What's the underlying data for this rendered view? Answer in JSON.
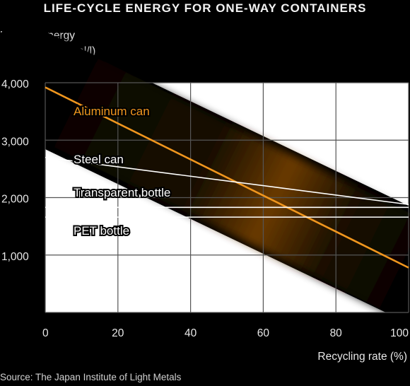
{
  "chart_data": {
    "type": "line",
    "title": "LIFE-CYCLE ENERGY FOR ONE-WAY CONTAINERS",
    "ylabel": "Lifetime energy\nrequirement (Kcal/l)",
    "xlabel": "Recycling rate (%)",
    "source": "Source: The Japan Institute of Light Metals",
    "x_ticks": [
      "0",
      "20",
      "40",
      "60",
      "80",
      "100"
    ],
    "y_ticks": [
      "1,000",
      "2,000",
      "3,000",
      "4,000"
    ],
    "xlim": [
      0,
      100
    ],
    "ylim": [
      0,
      4000
    ],
    "grid": true,
    "series": [
      {
        "name": "Aluminum can",
        "x": [
          0,
          100
        ],
        "y": [
          3920,
          780
        ],
        "color": "#f0961e"
      },
      {
        "name": "Steel can",
        "x": [
          0,
          100
        ],
        "y": [
          2700,
          1880
        ],
        "color": "#ffffff"
      },
      {
        "name": "Transparent bottle",
        "x": [
          0,
          100
        ],
        "y": [
          1830,
          1830
        ],
        "color": "#ffffff"
      },
      {
        "name": "PET bottle",
        "x": [
          0,
          100
        ],
        "y": [
          1660,
          1660
        ],
        "color": "#ffffff"
      }
    ]
  }
}
